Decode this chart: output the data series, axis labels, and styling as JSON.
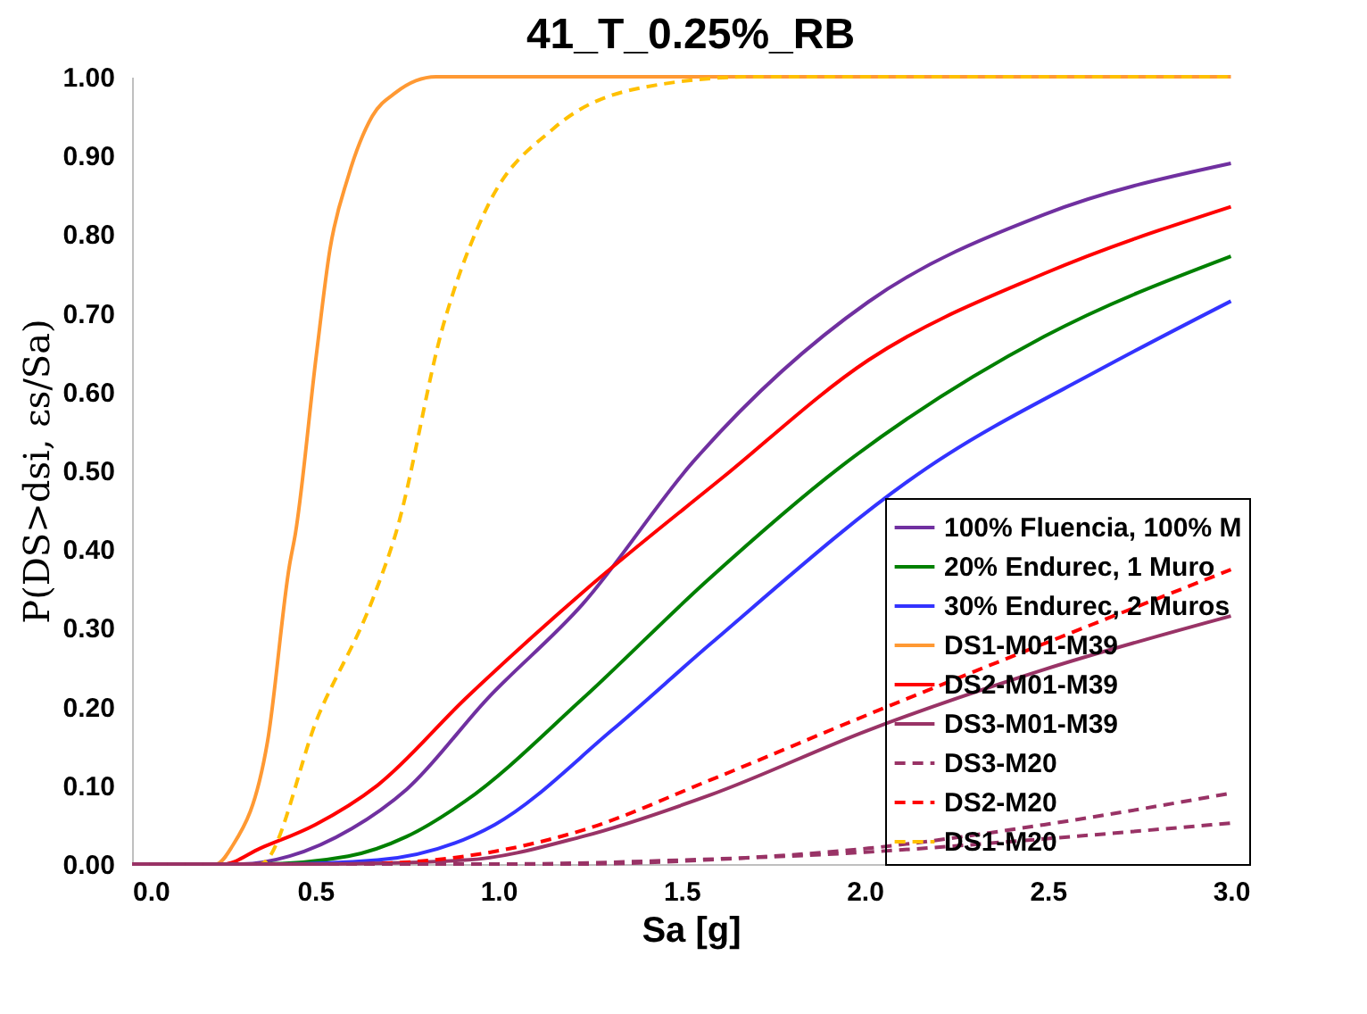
{
  "chart_data": {
    "type": "line",
    "title": "41_T_0.25%_RB",
    "xlabel": "Sa [g]",
    "ylabel": "P(DS>dsi, εs/Sa)",
    "xlim": [
      0,
      3.05
    ],
    "ylim": [
      0,
      1.0
    ],
    "xticks": [
      {
        "value": 0,
        "label": "0.0"
      },
      0.5,
      {
        "value": 1,
        "label": "1.0"
      },
      1.5,
      {
        "value": 2,
        "label": "2.0"
      },
      2.5,
      {
        "value": 3,
        "label": "3.0"
      }
    ],
    "yticks": [
      {
        "value": 0,
        "label": "0.00"
      },
      {
        "value": 0.1,
        "label": "0.10"
      },
      {
        "value": 0.2,
        "label": "0.20"
      },
      {
        "value": 0.3,
        "label": "0.30"
      },
      {
        "value": 0.4,
        "label": "0.40"
      },
      {
        "value": 0.5,
        "label": "0.50"
      },
      {
        "value": 0.6,
        "label": "0.60"
      },
      {
        "value": 0.7,
        "label": "0.70"
      },
      {
        "value": 0.8,
        "label": "0.80"
      },
      {
        "value": 0.9,
        "label": "0.90"
      },
      {
        "value": 1,
        "label": "1.00"
      }
    ],
    "grid": false,
    "legend": "bottom right",
    "marker": "none",
    "series": [
      {
        "name": "100% Fluencia, 100% M",
        "color": "#7030a0",
        "line_style": "solid",
        "x": [
          0,
          0.3,
          0.43,
          0.6,
          0.75,
          0.97,
          1.23,
          1.53,
          2.01,
          2.49,
          3.0
        ],
        "values": [
          0,
          0,
          0.01,
          0.045,
          0.095,
          0.21,
          0.33,
          0.51,
          0.714,
          0.825,
          0.89
        ]
      },
      {
        "name": "20% Endurec, 1 Muro",
        "color": "#008000",
        "line_style": "solid",
        "x": [
          0,
          0.35,
          0.59,
          0.75,
          0.91,
          1.23,
          1.57,
          1.93,
          2.49,
          3.0
        ],
        "values": [
          0,
          0,
          0.01,
          0.035,
          0.08,
          0.21,
          0.36,
          0.503,
          0.67,
          0.772
        ]
      },
      {
        "name": "30% Endurec, 2 Muros",
        "color": "#3333ff",
        "line_style": "solid",
        "x": [
          0,
          0.4,
          0.67,
          0.99,
          1.31,
          1.58,
          2.17,
          2.65,
          3.0
        ],
        "values": [
          0,
          0,
          0.005,
          0.05,
          0.17,
          0.28,
          0.503,
          0.63,
          0.715
        ]
      },
      {
        "name": "DS1-M01-M39",
        "color": "#ff9933",
        "line_style": "solid",
        "x": [
          0,
          0.23,
          0.27,
          0.37,
          0.43,
          0.446,
          0.503,
          0.54,
          0.59,
          0.656,
          0.72,
          0.83,
          1.5,
          3.0
        ],
        "values": [
          0,
          0,
          0.02,
          0.156,
          0.38,
          0.42,
          0.646,
          0.78,
          0.873,
          0.95,
          0.98,
          1.0,
          1.0,
          1.0
        ]
      },
      {
        "name": "DS2-M01-M39",
        "color": "#ff0000",
        "line_style": "solid",
        "x": [
          0,
          0.25,
          0.35,
          0.5,
          0.67,
          0.91,
          1.23,
          1.61,
          2.01,
          2.49,
          3.0
        ],
        "values": [
          0,
          0,
          0.02,
          0.05,
          0.1,
          0.21,
          0.345,
          0.49,
          0.64,
          0.75,
          0.835
        ]
      },
      {
        "name": "DS3-M01-M39",
        "color": "#993366",
        "line_style": "solid",
        "x": [
          0,
          0.5,
          0.91,
          1.23,
          1.58,
          2.01,
          2.49,
          3.0
        ],
        "values": [
          0,
          0,
          0.005,
          0.035,
          0.088,
          0.17,
          0.247,
          0.315
        ]
      },
      {
        "name": "DS3-M20",
        "color": "#993366",
        "line_style": "dashed",
        "x": [
          0,
          1.2,
          1.6,
          2.01,
          2.49,
          3.0
        ],
        "values": [
          0,
          0,
          0.006,
          0.02,
          0.05,
          0.09
        ]
      },
      {
        "name": "DS2-M20",
        "color": "#ff0000",
        "line_style": "dashed",
        "x": [
          0,
          0.6,
          0.91,
          1.23,
          1.58,
          2.01,
          2.49,
          3.0
        ],
        "values": [
          0,
          0,
          0.01,
          0.043,
          0.107,
          0.19,
          0.28,
          0.374
        ]
      },
      {
        "name": "DS1-M20",
        "color": "#ffc000",
        "line_style": "dashed",
        "x": [
          0,
          0.35,
          0.51,
          0.66,
          0.72,
          0.85,
          0.97,
          1.15,
          1.39,
          1.7,
          3.0
        ],
        "values": [
          0,
          0,
          0.19,
          0.34,
          0.42,
          0.685,
          0.835,
          0.934,
          0.986,
          1.0,
          1.0
        ]
      },
      {
        "color": "#993366",
        "line_style": "dashed",
        "x": [
          0,
          1.0,
          1.5,
          2.0,
          2.49,
          3.0
        ],
        "values": [
          0,
          0,
          0.005,
          0.015,
          0.032,
          0.052
        ]
      }
    ]
  }
}
